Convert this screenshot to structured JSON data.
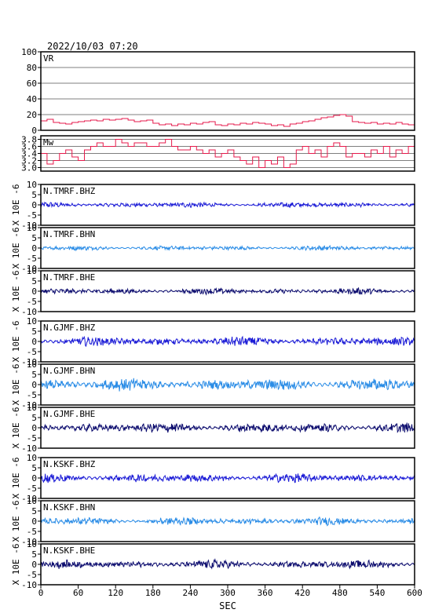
{
  "header": {
    "datetime": "2022/10/03  07:20"
  },
  "chart_data": {
    "type": "line",
    "xlabel": "SEC",
    "xlim": [
      0,
      600
    ],
    "xticks": [
      0,
      60,
      120,
      180,
      240,
      300,
      360,
      420,
      480,
      540,
      600
    ],
    "panels": [
      {
        "name": "VR",
        "label": "VR",
        "color": "#e6194b",
        "ylim": [
          0,
          100
        ],
        "yticks": [
          0,
          20,
          40,
          60,
          80,
          100
        ],
        "grid": true,
        "x": [
          0,
          10,
          20,
          30,
          40,
          50,
          60,
          70,
          80,
          90,
          100,
          110,
          120,
          130,
          140,
          150,
          160,
          170,
          180,
          190,
          200,
          210,
          220,
          230,
          240,
          250,
          260,
          270,
          280,
          290,
          300,
          310,
          320,
          330,
          340,
          350,
          360,
          370,
          380,
          390,
          400,
          410,
          420,
          430,
          440,
          450,
          460,
          470,
          480,
          490,
          500,
          510,
          520,
          530,
          540,
          550,
          560,
          570,
          580,
          590,
          600
        ],
        "y": [
          12,
          14,
          10,
          9,
          8,
          10,
          11,
          12,
          13,
          12,
          14,
          13,
          14,
          15,
          13,
          11,
          12,
          13,
          9,
          7,
          8,
          6,
          8,
          7,
          9,
          8,
          10,
          11,
          7,
          6,
          8,
          7,
          9,
          8,
          10,
          9,
          8,
          6,
          7,
          5,
          8,
          9,
          11,
          12,
          14,
          16,
          17,
          19,
          20,
          18,
          11,
          10,
          9,
          10,
          8,
          9,
          8,
          10,
          8,
          7,
          8
        ]
      },
      {
        "name": "Mw",
        "label": "Mw",
        "color": "#e6194b",
        "ylim": [
          2.9,
          3.9
        ],
        "yticks": [
          3.0,
          3.2,
          3.4,
          3.6,
          3.8
        ],
        "grid": true,
        "x": [
          0,
          10,
          20,
          30,
          40,
          50,
          60,
          70,
          80,
          90,
          100,
          110,
          120,
          130,
          140,
          150,
          160,
          170,
          180,
          190,
          200,
          210,
          220,
          230,
          240,
          250,
          260,
          270,
          280,
          290,
          300,
          310,
          320,
          330,
          340,
          350,
          360,
          370,
          380,
          390,
          400,
          410,
          420,
          430,
          440,
          450,
          460,
          470,
          480,
          490,
          500,
          510,
          520,
          530,
          540,
          550,
          560,
          570,
          580,
          590,
          600
        ],
        "y": [
          3.4,
          3.1,
          3.2,
          3.4,
          3.5,
          3.3,
          3.2,
          3.5,
          3.6,
          3.7,
          3.6,
          3.6,
          3.8,
          3.7,
          3.6,
          3.7,
          3.7,
          3.6,
          3.6,
          3.7,
          3.8,
          3.6,
          3.5,
          3.5,
          3.6,
          3.5,
          3.4,
          3.5,
          3.3,
          3.4,
          3.5,
          3.3,
          3.2,
          3.1,
          3.3,
          3.0,
          3.2,
          3.1,
          3.3,
          3.0,
          3.1,
          3.5,
          3.6,
          3.4,
          3.5,
          3.3,
          3.6,
          3.7,
          3.6,
          3.3,
          3.4,
          3.4,
          3.3,
          3.5,
          3.4,
          3.6,
          3.3,
          3.5,
          3.4,
          3.6,
          3.1
        ]
      },
      {
        "name": "N.TMRF.BHZ",
        "label": "N.TMRF.BHZ",
        "color": "#1a1ad6",
        "ylim": [
          -10,
          10
        ],
        "yticks": [
          -10,
          -5,
          0,
          5,
          10
        ],
        "ylabel": "X 10E -6",
        "grid": false,
        "amplitude": 0.7
      },
      {
        "name": "N.TMRF.BHN",
        "label": "N.TMRF.BHN",
        "color": "#2a8ce6",
        "ylim": [
          -10,
          10
        ],
        "yticks": [
          -10,
          -5,
          0,
          5,
          10
        ],
        "ylabel": "X 10E -6",
        "grid": false,
        "amplitude": 0.6
      },
      {
        "name": "N.TMRF.BHE",
        "label": "N.TMRF.BHE",
        "color": "#0c0c6e",
        "ylim": [
          -10,
          10
        ],
        "yticks": [
          -10,
          -5,
          0,
          5,
          10
        ],
        "ylabel": "X 10E -6",
        "grid": false,
        "amplitude": 0.8
      },
      {
        "name": "N.GJMF.BHZ",
        "label": "N.GJMF.BHZ",
        "color": "#1a1ad6",
        "ylim": [
          -10,
          10
        ],
        "yticks": [
          -10,
          -5,
          0,
          5,
          10
        ],
        "ylabel": "X 10E -6",
        "grid": false,
        "amplitude": 1.2
      },
      {
        "name": "N.GJMF.BHN",
        "label": "N.GJMF.BHN",
        "color": "#2a8ce6",
        "ylim": [
          -10,
          10
        ],
        "yticks": [
          -10,
          -5,
          0,
          5,
          10
        ],
        "ylabel": "X 10E -6",
        "grid": false,
        "amplitude": 1.6
      },
      {
        "name": "N.GJMF.BHE",
        "label": "N.GJMF.BHE",
        "color": "#0c0c6e",
        "ylim": [
          -10,
          10
        ],
        "yticks": [
          -10,
          -5,
          0,
          5,
          10
        ],
        "ylabel": "X 10E -6",
        "grid": false,
        "amplitude": 1.3
      },
      {
        "name": "N.KSKF.BHZ",
        "label": "N.KSKF.BHZ",
        "color": "#1a1ad6",
        "ylim": [
          -10,
          10
        ],
        "yticks": [
          -10,
          -5,
          0,
          5,
          10
        ],
        "ylabel": "X 10E -6",
        "grid": false,
        "amplitude": 1.2
      },
      {
        "name": "N.KSKF.BHN",
        "label": "N.KSKF.BHN",
        "color": "#2a8ce6",
        "ylim": [
          -10,
          10
        ],
        "yticks": [
          -10,
          -5,
          0,
          5,
          10
        ],
        "ylabel": "X 10E -6",
        "grid": false,
        "amplitude": 1.0
      },
      {
        "name": "N.KSKF.BHE",
        "label": "N.KSKF.BHE",
        "color": "#0c0c6e",
        "ylim": [
          -10,
          10
        ],
        "yticks": [
          -10,
          -5,
          0,
          5,
          10
        ],
        "ylabel": "X 10E -6",
        "grid": false,
        "amplitude": 1.1
      }
    ]
  }
}
